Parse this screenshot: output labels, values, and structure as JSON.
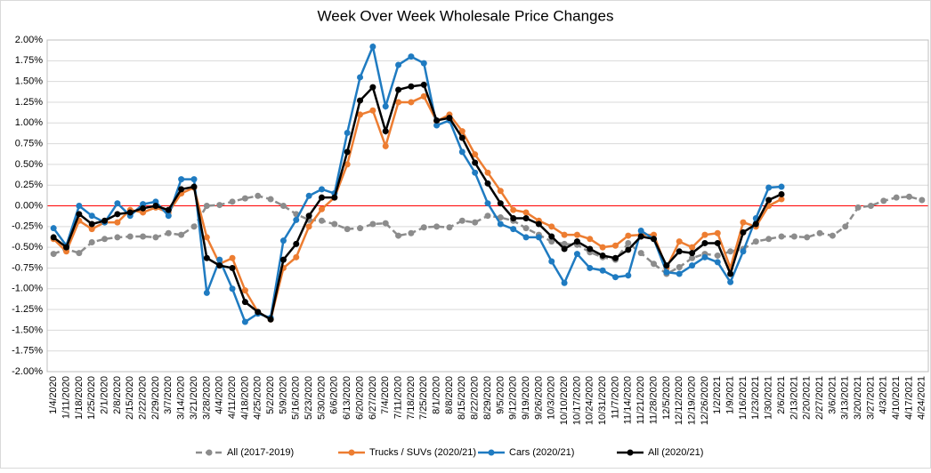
{
  "chart_data": {
    "type": "line",
    "title": "Week Over Week Wholesale Price Changes",
    "categories": [
      "1/4/2020",
      "1/11/2020",
      "1/18/2020",
      "1/25/2020",
      "2/1/2020",
      "2/8/2020",
      "2/15/2020",
      "2/22/2020",
      "2/29/2020",
      "3/7/2020",
      "3/14/2020",
      "3/21/2020",
      "3/28/2020",
      "4/4/2020",
      "4/11/2020",
      "4/18/2020",
      "4/25/2020",
      "5/2/2020",
      "5/9/2020",
      "5/16/2020",
      "5/23/2020",
      "5/30/2020",
      "6/6/2020",
      "6/13/2020",
      "6/20/2020",
      "6/27/2020",
      "7/4/2020",
      "7/11/2020",
      "7/18/2020",
      "7/25/2020",
      "8/1/2020",
      "8/8/2020",
      "8/15/2020",
      "8/22/2020",
      "8/29/2020",
      "9/5/2020",
      "9/12/2020",
      "9/19/2020",
      "9/26/2020",
      "10/3/2020",
      "10/10/2020",
      "10/17/2020",
      "10/24/2020",
      "10/31/2020",
      "11/7/2020",
      "11/14/2020",
      "11/21/2020",
      "11/28/2020",
      "12/5/2020",
      "12/12/2020",
      "12/19/2020",
      "12/26/2020",
      "1/2/2021",
      "1/9/2021",
      "1/16/2021",
      "1/23/2021",
      "1/30/2021",
      "2/6/2021",
      "2/13/2021",
      "2/20/2021",
      "2/27/2021",
      "3/6/2021",
      "3/13/2021",
      "3/20/2021",
      "3/27/2021",
      "4/3/2021",
      "4/10/2021",
      "4/17/2021",
      "4/24/2021"
    ],
    "series": [
      {
        "name": "All (2017-2019)",
        "color": "#8c8c8c",
        "dashed": true,
        "values": [
          -0.58,
          -0.52,
          -0.57,
          -0.44,
          -0.4,
          -0.38,
          -0.37,
          -0.37,
          -0.38,
          -0.33,
          -0.35,
          -0.25,
          0.0,
          0.01,
          0.05,
          0.09,
          0.12,
          0.08,
          0.0,
          -0.1,
          -0.17,
          -0.18,
          -0.22,
          -0.28,
          -0.27,
          -0.22,
          -0.21,
          -0.36,
          -0.33,
          -0.26,
          -0.25,
          -0.26,
          -0.18,
          -0.2,
          -0.12,
          -0.14,
          -0.18,
          -0.27,
          -0.35,
          -0.43,
          -0.46,
          -0.47,
          -0.56,
          -0.62,
          -0.65,
          -0.45,
          -0.57,
          -0.7,
          -0.82,
          -0.74,
          -0.63,
          -0.58,
          -0.6,
          -0.55,
          -0.52,
          -0.43,
          -0.4,
          -0.37,
          -0.37,
          -0.38,
          -0.33,
          -0.36,
          -0.25,
          -0.02,
          0.0,
          0.06,
          0.1,
          0.11,
          0.07
        ]
      },
      {
        "name": "Trucks / SUVs (2020/21)",
        "color": "#ed7d31",
        "values": [
          -0.4,
          -0.55,
          -0.18,
          -0.28,
          -0.2,
          -0.2,
          -0.05,
          -0.08,
          -0.02,
          -0.08,
          0.15,
          0.22,
          -0.38,
          -0.7,
          -0.63,
          -1.02,
          -1.28,
          -1.37,
          -0.75,
          -0.62,
          -0.25,
          -0.04,
          0.1,
          0.5,
          1.1,
          1.15,
          0.72,
          1.25,
          1.25,
          1.32,
          1.02,
          1.1,
          0.9,
          0.62,
          0.4,
          0.18,
          -0.05,
          -0.08,
          -0.18,
          -0.25,
          -0.35,
          -0.35,
          -0.4,
          -0.5,
          -0.48,
          -0.36,
          -0.35,
          -0.35,
          -0.75,
          -0.43,
          -0.5,
          -0.35,
          -0.33,
          -0.75,
          -0.2,
          -0.25,
          0.0,
          0.08,
          null,
          null,
          null,
          null,
          null,
          null,
          null,
          null,
          null,
          null,
          null
        ]
      },
      {
        "name": "Cars (2020/21)",
        "color": "#1f7bc1",
        "values": [
          -0.27,
          -0.48,
          0.0,
          -0.12,
          -0.2,
          0.03,
          -0.12,
          0.02,
          0.05,
          -0.12,
          0.32,
          0.32,
          -1.05,
          -0.65,
          -1.0,
          -1.4,
          -1.3,
          -1.35,
          -0.42,
          -0.17,
          0.12,
          0.2,
          0.15,
          0.88,
          1.55,
          1.92,
          1.2,
          1.7,
          1.8,
          1.72,
          0.97,
          1.03,
          0.65,
          0.4,
          0.03,
          -0.22,
          -0.28,
          -0.38,
          -0.38,
          -0.67,
          -0.93,
          -0.58,
          -0.75,
          -0.78,
          -0.86,
          -0.84,
          -0.3,
          -0.4,
          -0.8,
          -0.82,
          -0.72,
          -0.62,
          -0.68,
          -0.92,
          -0.55,
          -0.15,
          0.22,
          0.23,
          null,
          null,
          null,
          null,
          null,
          null,
          null,
          null,
          null,
          null,
          null
        ]
      },
      {
        "name": "All (2020/21)",
        "color": "#000000",
        "values": [
          -0.38,
          -0.5,
          -0.1,
          -0.22,
          -0.18,
          -0.1,
          -0.08,
          -0.03,
          0.0,
          -0.05,
          0.2,
          0.23,
          -0.63,
          -0.72,
          -0.75,
          -1.16,
          -1.28,
          -1.37,
          -0.65,
          -0.46,
          -0.12,
          0.1,
          0.1,
          0.65,
          1.27,
          1.43,
          0.9,
          1.4,
          1.44,
          1.46,
          1.03,
          1.06,
          0.82,
          0.52,
          0.27,
          0.03,
          -0.15,
          -0.15,
          -0.22,
          -0.37,
          -0.52,
          -0.43,
          -0.52,
          -0.6,
          -0.63,
          -0.53,
          -0.37,
          -0.4,
          -0.72,
          -0.55,
          -0.57,
          -0.45,
          -0.45,
          -0.82,
          -0.32,
          -0.22,
          0.07,
          0.14,
          null,
          null,
          null,
          null,
          null,
          null,
          null,
          null,
          null,
          null,
          null
        ]
      }
    ],
    "ylim": [
      -2,
      2
    ],
    "yticks": [
      {
        "value": 2,
        "label": "2.00%"
      },
      {
        "value": 1.75,
        "label": "1.75%"
      },
      {
        "value": 1.5,
        "label": "1.50%"
      },
      {
        "value": 1.25,
        "label": "1.25%"
      },
      {
        "value": 1,
        "label": "1.00%"
      },
      {
        "value": 0.75,
        "label": "0.75%"
      },
      {
        "value": 0.5,
        "label": "0.50%"
      },
      {
        "value": 0.25,
        "label": "0.25%"
      },
      {
        "value": 0,
        "label": "0.00%"
      },
      {
        "value": -0.25,
        "label": "-0.25%"
      },
      {
        "value": -0.5,
        "label": "-0.50%"
      },
      {
        "value": -0.75,
        "label": "-0.75%"
      },
      {
        "value": -1,
        "label": "-1.00%"
      },
      {
        "value": -1.25,
        "label": "-1.25%"
      },
      {
        "value": -1.5,
        "label": "-1.50%"
      },
      {
        "value": -1.75,
        "label": "-1.75%"
      },
      {
        "value": -2,
        "label": "-2.00%"
      }
    ],
    "grid": true,
    "zero_line_color": "#ff0000",
    "legend": "bottom"
  }
}
